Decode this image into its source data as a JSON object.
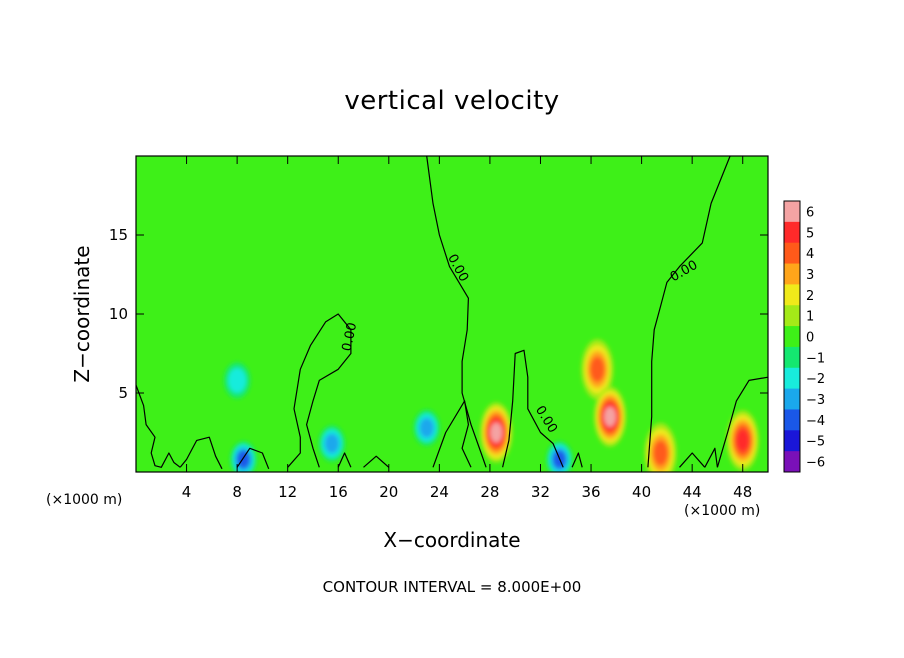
{
  "chart_data": {
    "type": "heatmap",
    "title": "vertical velocity",
    "xlabel": "X−coordinate",
    "ylabel": "Z−coordinate",
    "x_unit": "(×1000 m)",
    "y_unit": "(×1000 m)",
    "x_ticks": [
      4,
      8,
      12,
      16,
      20,
      24,
      28,
      32,
      36,
      40,
      44,
      48
    ],
    "y_ticks": [
      5,
      10,
      15
    ],
    "xlim": [
      0,
      50
    ],
    "ylim": [
      0,
      20
    ],
    "colorbar": {
      "levels": [
        6,
        5,
        4,
        3,
        2,
        1,
        0,
        -1,
        -2,
        -3,
        -4,
        -5,
        -6
      ],
      "labels": [
        "6",
        "5",
        "4",
        "3",
        "2",
        "1",
        "0",
        "−1",
        "−2",
        "−3",
        "−4",
        "−5",
        "−6"
      ],
      "colors": [
        "#f4a3a3",
        "#ff2a2a",
        "#ff5a1a",
        "#ffa51a",
        "#f0ea1a",
        "#a4ea18",
        "#3ef018",
        "#14e870",
        "#18ecdc",
        "#1aa8ec",
        "#1a58e8",
        "#1a16d8",
        "#7a10b8"
      ]
    },
    "contour_label": "0.00",
    "contour_interval_text": "CONTOUR INTERVAL = 8.000E+00",
    "features": [
      {
        "x": 8,
        "z": 5.8,
        "w": -2.2
      },
      {
        "x": 8.5,
        "z": 0.8,
        "w": -3.5
      },
      {
        "x": 15.5,
        "z": 1.8,
        "w": -2.5
      },
      {
        "x": 23,
        "z": 2.8,
        "w": -2.8
      },
      {
        "x": 28.5,
        "z": 2.5,
        "w": 6
      },
      {
        "x": 33.5,
        "z": 0.8,
        "w": -3.5
      },
      {
        "x": 36.5,
        "z": 6.5,
        "w": 4
      },
      {
        "x": 37.5,
        "z": 3.5,
        "w": 6
      },
      {
        "x": 41.5,
        "z": 1.2,
        "w": 4
      },
      {
        "x": 48,
        "z": 2,
        "w": 5
      }
    ]
  }
}
